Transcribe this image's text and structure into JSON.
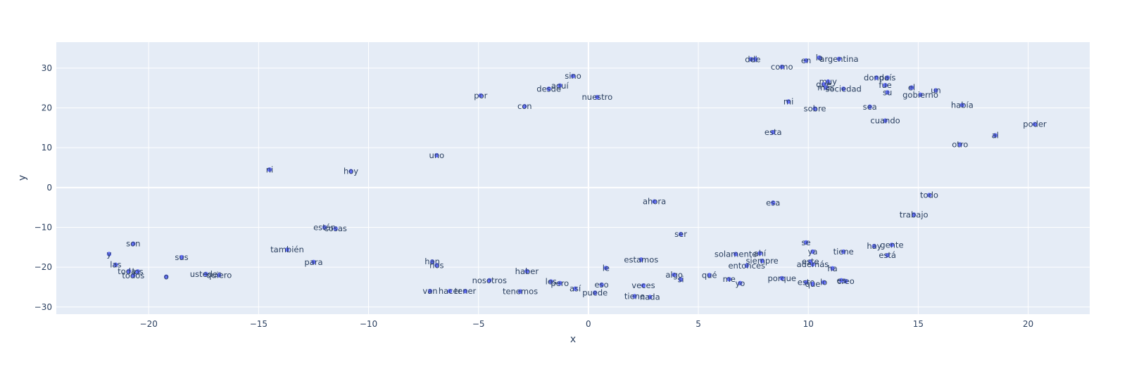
{
  "chart_data": {
    "type": "scatter",
    "xlabel": "x",
    "ylabel": "y",
    "xlim": [
      -24.2,
      22.8
    ],
    "ylim": [
      -31.8,
      36.5
    ],
    "xticks": [
      -20,
      -15,
      -10,
      -5,
      0,
      5,
      10,
      15,
      20
    ],
    "yticks": [
      -30,
      -20,
      -10,
      0,
      10,
      20,
      30
    ],
    "xtick_labels": [
      "−20",
      "−15",
      "−10",
      "−5",
      "0",
      "5",
      "10",
      "15",
      "20"
    ],
    "ytick_labels": [
      "−30",
      "−20",
      "−10",
      "0",
      "10",
      "20",
      "30"
    ],
    "grid": true,
    "colors": {
      "marker": "#636efa",
      "plot_bg": "#e5ecf6",
      "grid": "#ffffff",
      "text": "#2a3f5f"
    },
    "points": [
      {
        "label": "y",
        "x": -21.8,
        "y": -16.7
      },
      {
        "label": "las",
        "x": -21.5,
        "y": -19.4
      },
      {
        "label": "son",
        "x": -20.7,
        "y": -14.1
      },
      {
        "label": "todas",
        "x": -20.9,
        "y": -21.0
      },
      {
        "label": "todos",
        "x": -20.7,
        "y": -22.1
      },
      {
        "label": "los",
        "x": -20.5,
        "y": -21.1
      },
      {
        "label": "o",
        "x": -19.2,
        "y": -22.4
      },
      {
        "label": "sus",
        "x": -18.5,
        "y": -17.5
      },
      {
        "label": "ustedes",
        "x": -17.4,
        "y": -21.7
      },
      {
        "label": "quiero",
        "x": -16.8,
        "y": -22.0
      },
      {
        "label": "ni",
        "x": -14.5,
        "y": 4.5
      },
      {
        "label": "también",
        "x": -13.7,
        "y": -15.6
      },
      {
        "label": "para",
        "x": -12.5,
        "y": -18.7
      },
      {
        "label": "están",
        "x": -12.0,
        "y": -10.0
      },
      {
        "label": "cosas",
        "x": -11.5,
        "y": -10.3
      },
      {
        "label": "hoy",
        "x": -10.8,
        "y": 4.1
      },
      {
        "label": "uno",
        "x": -6.9,
        "y": 8.1
      },
      {
        "label": "han",
        "x": -7.1,
        "y": -18.6
      },
      {
        "label": "nos",
        "x": -6.9,
        "y": -19.5
      },
      {
        "label": "van",
        "x": -7.2,
        "y": -26.0
      },
      {
        "label": "hacer",
        "x": -6.3,
        "y": -26.0
      },
      {
        "label": "tener",
        "x": -5.6,
        "y": -26.0
      },
      {
        "label": "por",
        "x": -4.9,
        "y": 23.1
      },
      {
        "label": "nosotros",
        "x": -4.5,
        "y": -23.3
      },
      {
        "label": "con",
        "x": -2.9,
        "y": 20.4
      },
      {
        "label": "haber",
        "x": -2.8,
        "y": -21.0
      },
      {
        "label": "tenemos",
        "x": -3.1,
        "y": -26.1
      },
      {
        "label": "desde",
        "x": -1.8,
        "y": 24.8
      },
      {
        "label": "aquí",
        "x": -1.3,
        "y": 25.6
      },
      {
        "label": "sino",
        "x": -0.7,
        "y": 28.0
      },
      {
        "label": "les",
        "x": -1.7,
        "y": -23.6
      },
      {
        "label": "pero",
        "x": -1.3,
        "y": -24.0
      },
      {
        "label": "así",
        "x": -0.6,
        "y": -25.4
      },
      {
        "label": "nuestro",
        "x": 0.4,
        "y": 22.7
      },
      {
        "label": "le",
        "x": 0.8,
        "y": -20.2
      },
      {
        "label": "eso",
        "x": 0.6,
        "y": -24.4
      },
      {
        "label": "puede",
        "x": 0.3,
        "y": -26.4
      },
      {
        "label": "estamos",
        "x": 2.4,
        "y": -18.1
      },
      {
        "label": "veces",
        "x": 2.5,
        "y": -24.6
      },
      {
        "label": "tiene",
        "x": 2.1,
        "y": -27.3
      },
      {
        "label": "nada",
        "x": 2.8,
        "y": -27.5
      },
      {
        "label": "ahora",
        "x": 3.0,
        "y": -3.5
      },
      {
        "label": "ser",
        "x": 4.2,
        "y": -11.7
      },
      {
        "label": "algo",
        "x": 3.9,
        "y": -21.9
      },
      {
        "label": "si",
        "x": 4.2,
        "y": -23.1
      },
      {
        "label": "qué",
        "x": 5.5,
        "y": -22.0
      },
      {
        "label": "me",
        "x": 6.4,
        "y": -23.0
      },
      {
        "label": "yo",
        "x": 6.9,
        "y": -24.0
      },
      {
        "label": "solamente",
        "x": 6.7,
        "y": -16.7
      },
      {
        "label": "ahí",
        "x": 7.8,
        "y": -16.5
      },
      {
        "label": "siempre",
        "x": 7.9,
        "y": -18.4
      },
      {
        "label": "entonces",
        "x": 7.2,
        "y": -19.6
      },
      {
        "label": "porque",
        "x": 8.8,
        "y": -22.8
      },
      {
        "label": "del",
        "x": 7.4,
        "y": 32.2
      },
      {
        "label": "de",
        "x": 7.6,
        "y": 32.2
      },
      {
        "label": "como",
        "x": 8.8,
        "y": 30.3
      },
      {
        "label": "mi",
        "x": 9.1,
        "y": 21.6
      },
      {
        "label": "esta",
        "x": 8.4,
        "y": 13.9
      },
      {
        "label": "esa",
        "x": 8.4,
        "y": -3.8
      },
      {
        "label": "en",
        "x": 9.9,
        "y": 31.9
      },
      {
        "label": "la",
        "x": 10.5,
        "y": 32.6
      },
      {
        "label": "argentina",
        "x": 11.4,
        "y": 32.3
      },
      {
        "label": "muy",
        "x": 10.9,
        "y": 26.6
      },
      {
        "label": "que",
        "x": 10.7,
        "y": 25.9
      },
      {
        "label": "más",
        "x": 10.8,
        "y": 25.1
      },
      {
        "label": "sociedad",
        "x": 11.6,
        "y": 24.8
      },
      {
        "label": "sobre",
        "x": 10.3,
        "y": 19.8
      },
      {
        "label": "se",
        "x": 9.9,
        "y": -13.8
      },
      {
        "label": "ya",
        "x": 10.2,
        "y": -16.1
      },
      {
        "label": "este",
        "x": 10.1,
        "y": -18.6
      },
      {
        "label": "además",
        "x": 10.2,
        "y": -19.3
      },
      {
        "label": "ha",
        "x": 11.1,
        "y": -20.3
      },
      {
        "label": "esto",
        "x": 9.9,
        "y": -23.8
      },
      {
        "label": "que",
        "x": 10.2,
        "y": -24.2
      },
      {
        "label": "lo",
        "x": 10.7,
        "y": -23.8
      },
      {
        "label": "creo",
        "x": 11.7,
        "y": -23.5
      },
      {
        "label": "es",
        "x": 11.5,
        "y": -23.3
      },
      {
        "label": "tiene",
        "x": 11.6,
        "y": -16.1
      },
      {
        "label": "donde",
        "x": 13.1,
        "y": 27.6
      },
      {
        "label": "país",
        "x": 13.6,
        "y": 27.6
      },
      {
        "label": "fue",
        "x": 13.5,
        "y": 25.7
      },
      {
        "label": "su",
        "x": 13.6,
        "y": 23.9
      },
      {
        "label": "sea",
        "x": 12.8,
        "y": 20.3
      },
      {
        "label": "cuando",
        "x": 13.5,
        "y": 16.8
      },
      {
        "label": "el",
        "x": 14.7,
        "y": 25.1
      },
      {
        "label": "gobierno",
        "x": 15.1,
        "y": 23.3
      },
      {
        "label": "un",
        "x": 15.8,
        "y": 24.4
      },
      {
        "label": "había",
        "x": 17.0,
        "y": 20.7
      },
      {
        "label": "hay",
        "x": 13.0,
        "y": -14.7
      },
      {
        "label": "gente",
        "x": 13.8,
        "y": -14.4
      },
      {
        "label": "está",
        "x": 13.6,
        "y": -17.0
      },
      {
        "label": "todo",
        "x": 15.5,
        "y": -1.9
      },
      {
        "label": "trabajo",
        "x": 14.8,
        "y": -6.8
      },
      {
        "label": "otro",
        "x": 16.9,
        "y": 10.8
      },
      {
        "label": "al",
        "x": 18.5,
        "y": 13.1
      },
      {
        "label": "poder",
        "x": 20.3,
        "y": 15.9
      }
    ]
  }
}
